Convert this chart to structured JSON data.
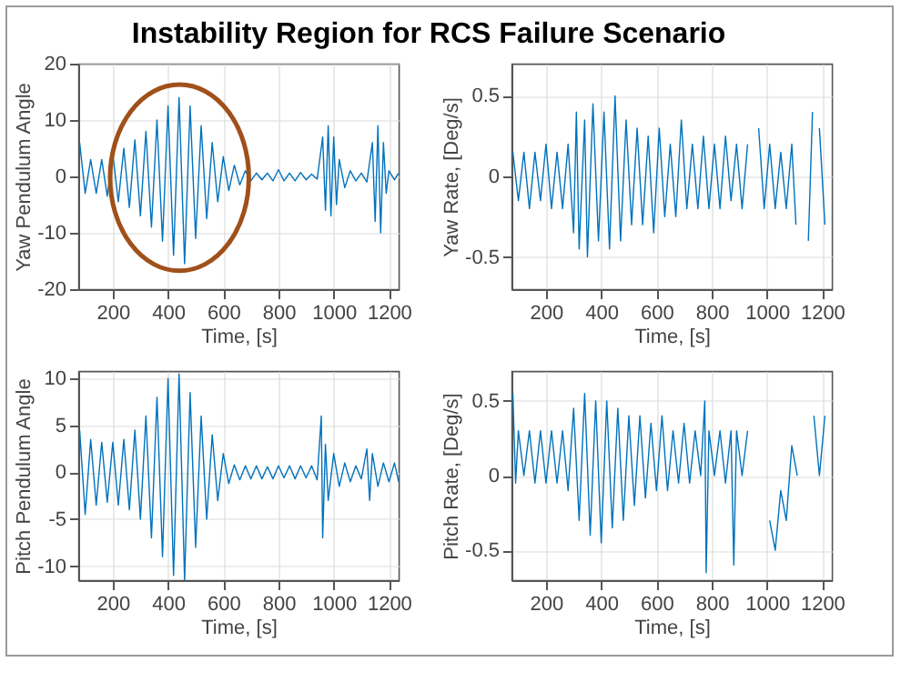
{
  "chart_data": [
    {
      "type": "line",
      "title": "Instability Region for RCS Failure Scenario",
      "xlabel": "Time, [s]",
      "ylabel": "Yaw Pendulum Angle",
      "xlim": [
        75,
        1235
      ],
      "xticks": [
        200,
        400,
        600,
        800,
        1000,
        1200
      ],
      "ylim": [
        -20,
        20
      ],
      "yticks": [
        -20,
        -10,
        0,
        10,
        20
      ],
      "grid": true,
      "color": "#0072bd",
      "x": [
        80,
        100,
        120,
        140,
        160,
        180,
        200,
        220,
        240,
        260,
        280,
        300,
        320,
        340,
        360,
        380,
        400,
        420,
        440,
        460,
        480,
        500,
        520,
        540,
        560,
        580,
        600,
        620,
        640,
        660,
        680,
        700,
        720,
        740,
        760,
        780,
        800,
        820,
        840,
        860,
        880,
        900,
        920,
        940,
        960,
        970,
        980,
        990,
        1000,
        1010,
        1020,
        1040,
        1060,
        1080,
        1100,
        1120,
        1140,
        1150,
        1160,
        1170,
        1180,
        1190,
        1200,
        1220,
        1235
      ],
      "values": [
        6,
        -3,
        3,
        -3,
        3,
        -3.5,
        4,
        -4.5,
        5,
        -5.5,
        6.5,
        -7,
        8,
        -9,
        10,
        -11.5,
        12.5,
        -14,
        14,
        -15.5,
        12.5,
        -11,
        9,
        -7.5,
        6,
        -4.5,
        3.5,
        -2.5,
        2,
        -1.5,
        1,
        -0.8,
        0.6,
        -0.6,
        0.6,
        -0.8,
        1.2,
        -0.8,
        0.6,
        -0.8,
        0.7,
        -0.6,
        0.4,
        -0.5,
        7,
        -6,
        9,
        -7,
        7,
        -5,
        3,
        -2,
        1,
        -0.8,
        0.6,
        -1,
        6,
        -8,
        9,
        -10,
        6,
        -3,
        1,
        -0.6,
        0.6
      ]
    },
    {
      "type": "line",
      "xlabel": "Time, [s]",
      "ylabel": "Yaw Rate, [Deg/s]",
      "xlim": [
        75,
        1235
      ],
      "xticks": [
        200,
        400,
        600,
        800,
        1000,
        1200
      ],
      "ylim": [
        -0.7,
        0.7
      ],
      "yticks": [
        -0.5,
        0,
        0.5
      ],
      "grid": true,
      "color": "#0072bd",
      "x": [
        80,
        100,
        120,
        140,
        160,
        180,
        200,
        220,
        240,
        260,
        280,
        300,
        310,
        320,
        340,
        350,
        370,
        390,
        410,
        430,
        450,
        470,
        490,
        510,
        530,
        550,
        570,
        590,
        610,
        630,
        650,
        670,
        690,
        710,
        730,
        750,
        770,
        790,
        810,
        830,
        850,
        870,
        890,
        910,
        930,
        945,
        950,
        955,
        970,
        990,
        1010,
        1030,
        1050,
        1070,
        1090,
        1105,
        1115,
        1125,
        1135,
        1150,
        1165,
        1175,
        1190,
        1210
      ],
      "values": [
        0.15,
        -0.15,
        0.15,
        -0.2,
        0.15,
        -0.15,
        0.2,
        -0.2,
        0.15,
        -0.2,
        0.2,
        -0.35,
        0.4,
        -0.45,
        0.35,
        -0.5,
        0.45,
        -0.4,
        0.4,
        -0.45,
        0.5,
        -0.4,
        0.35,
        -0.3,
        0.3,
        -0.3,
        0.25,
        -0.35,
        0.3,
        -0.25,
        0.2,
        -0.25,
        0.35,
        -0.2,
        0.2,
        -0.2,
        0.25,
        -0.2,
        0.2,
        -0.2,
        0.25,
        -0.15,
        0.2,
        -0.2,
        0.2,
        null,
        null,
        null,
        0.3,
        -0.2,
        0.2,
        -0.2,
        0.15,
        -0.2,
        0.2,
        -0.3,
        null,
        null,
        null,
        -0.4,
        0.4,
        null,
        0.3,
        -0.3
      ]
    },
    {
      "type": "line",
      "xlabel": "Time, [s]",
      "ylabel": "Pitch Pendulum Angle",
      "xlim": [
        75,
        1235
      ],
      "xticks": [
        200,
        400,
        600,
        800,
        1000,
        1200
      ],
      "ylim": [
        -11.5,
        10.8
      ],
      "yticks": [
        -10,
        -5,
        0,
        5,
        10
      ],
      "grid": true,
      "color": "#0072bd",
      "x": [
        80,
        100,
        120,
        140,
        160,
        180,
        200,
        220,
        240,
        260,
        280,
        300,
        320,
        340,
        360,
        380,
        400,
        420,
        440,
        460,
        480,
        500,
        520,
        540,
        560,
        580,
        600,
        620,
        640,
        660,
        680,
        700,
        720,
        740,
        760,
        780,
        800,
        820,
        840,
        860,
        880,
        900,
        920,
        940,
        955,
        960,
        970,
        980,
        1000,
        1020,
        1040,
        1060,
        1080,
        1100,
        1120,
        1130,
        1140,
        1160,
        1180,
        1200,
        1220,
        1235
      ],
      "values": [
        4.5,
        -4.5,
        3.5,
        -3.5,
        3.2,
        -3.2,
        3.2,
        -3.5,
        3.5,
        -4,
        4.5,
        -5,
        6,
        -7,
        8,
        -9,
        10,
        -11,
        10.5,
        -11.5,
        8.5,
        -8,
        6,
        -5,
        4,
        -3,
        2,
        -1.2,
        0.8,
        -0.8,
        0.7,
        -0.7,
        0.7,
        -0.7,
        0.6,
        -0.7,
        0.7,
        -0.6,
        0.7,
        -0.7,
        0.7,
        -0.6,
        0.7,
        -0.8,
        6,
        -7,
        3,
        -3,
        2,
        -1.5,
        1,
        -1,
        0.7,
        -0.7,
        2.5,
        -3,
        2,
        -1.5,
        1,
        -1,
        1,
        -1
      ]
    },
    {
      "type": "line",
      "xlabel": "Time, [s]",
      "ylabel": "Pitch Rate, [Deg/s]",
      "xlim": [
        75,
        1235
      ],
      "xticks": [
        200,
        400,
        600,
        800,
        1000,
        1200
      ],
      "ylim": [
        -0.7,
        0.7
      ],
      "yticks": [
        -0.5,
        0,
        0.5
      ],
      "grid": true,
      "color": "#0072bd",
      "x": [
        80,
        90,
        100,
        120,
        140,
        160,
        180,
        200,
        220,
        240,
        260,
        280,
        300,
        320,
        340,
        360,
        380,
        400,
        420,
        440,
        460,
        480,
        500,
        520,
        540,
        560,
        580,
        600,
        620,
        640,
        660,
        680,
        700,
        720,
        740,
        760,
        775,
        780,
        790,
        810,
        830,
        850,
        870,
        880,
        890,
        910,
        930,
        945,
        955,
        965,
        975,
        990,
        1010,
        1030,
        1050,
        1070,
        1090,
        1110,
        1120,
        1130,
        1145,
        1155,
        1170,
        1190,
        1210
      ],
      "values": [
        0.55,
        -0.05,
        0.3,
        0,
        0.3,
        -0.05,
        0.3,
        -0.05,
        0.3,
        -0.05,
        0.3,
        -0.1,
        0.45,
        -0.3,
        0.55,
        -0.4,
        0.5,
        -0.45,
        0.5,
        -0.35,
        0.45,
        -0.3,
        0.4,
        -0.2,
        0.4,
        -0.15,
        0.35,
        -0.1,
        0.4,
        -0.1,
        0.3,
        -0.05,
        0.35,
        -0.05,
        0.3,
        0,
        0.5,
        -0.65,
        0.3,
        0,
        0.3,
        -0.05,
        0.3,
        -0.6,
        0.3,
        0,
        0.3,
        null,
        null,
        null,
        null,
        null,
        -0.3,
        -0.5,
        -0.1,
        -0.3,
        0.2,
        0,
        null,
        null,
        null,
        null,
        0.4,
        0,
        0.4
      ]
    }
  ]
}
